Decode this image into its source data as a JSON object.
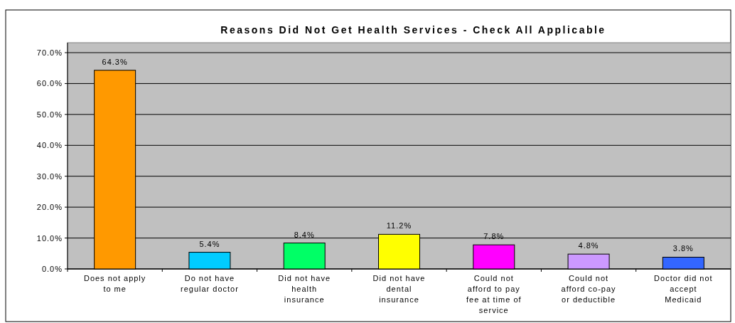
{
  "chart_data": {
    "type": "bar",
    "title": "Reasons Did Not Get Health Services - Check All Applicable",
    "categories": [
      "Does not apply to me",
      "Do not have regular doctor",
      "Did not have health insurance",
      "Did not have dental insurance",
      "Could not afford to pay fee at time of service",
      "Could not afford co-pay or deductible",
      "Doctor did not accept Medicaid"
    ],
    "values": [
      64.3,
      5.4,
      8.4,
      11.2,
      7.8,
      4.8,
      3.8
    ],
    "colors": [
      "#ff9900",
      "#00ccff",
      "#00ff66",
      "#ffff00",
      "#ff00ff",
      "#cc99ff",
      "#3366ff"
    ],
    "value_labels": [
      "64.3%",
      "5.4%",
      "8.4%",
      "11.2%",
      "7.8%",
      "4.8%",
      "3.8%"
    ],
    "ylim": [
      0,
      70
    ],
    "yticks": [
      {
        "value": 0,
        "label": "0.0%"
      },
      {
        "value": 10,
        "label": "10.0%"
      },
      {
        "value": 20,
        "label": "20.0%"
      },
      {
        "value": 30,
        "label": "30.0%"
      },
      {
        "value": 40,
        "label": "40.0%"
      },
      {
        "value": 50,
        "label": "50.0%"
      },
      {
        "value": 60,
        "label": "60.0%"
      },
      {
        "value": 70,
        "label": "70.0%"
      }
    ],
    "grid": "y"
  }
}
